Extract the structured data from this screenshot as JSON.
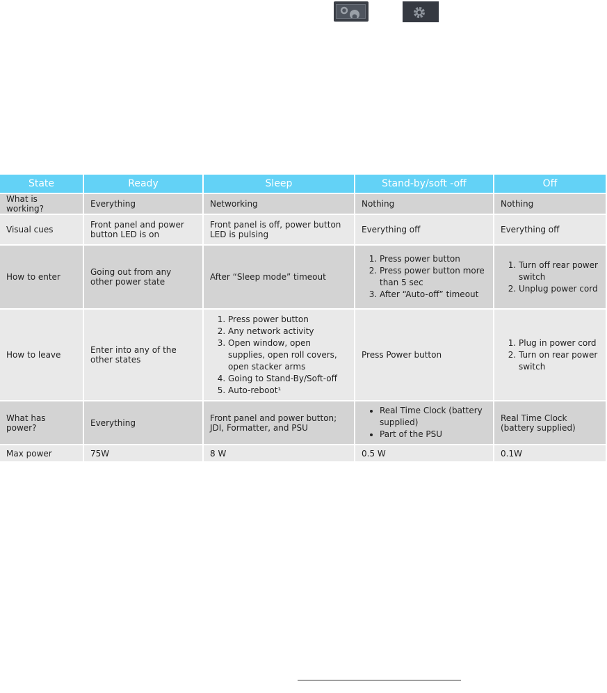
{
  "icons": [
    "gears-icon",
    "gear-icon"
  ],
  "colors": {
    "header": "#63d2f6",
    "row_dark": "#d3d3d3",
    "row_light": "#e9e9e9"
  },
  "headers": [
    "State",
    "Ready",
    "Sleep",
    "Stand-by/soft -off",
    "Off"
  ],
  "rows": [
    {
      "label": "What is working?",
      "ready": "Everything",
      "sleep": "Networking",
      "standby": "Nothing",
      "off": "Nothing"
    },
    {
      "label": "Visual cues",
      "ready": "Front panel and power button LED is on",
      "sleep": "Front panel is off, power button LED is pulsing",
      "standby": "Everything off",
      "off": "Everything off"
    },
    {
      "label": "How to enter",
      "ready": "Going out from any other power state",
      "sleep": "After “Sleep mode” timeout",
      "standby_list": [
        "Press power button",
        "Press power button more than 5 sec",
        "After “Auto-off” timeout"
      ],
      "off_list": [
        "Turn off rear power switch",
        "Unplug power cord"
      ]
    },
    {
      "label": "How to leave",
      "ready": "Enter into any of the other states",
      "sleep_list": [
        "Press power button",
        "Any network activity",
        "Open window, open supplies, open roll covers, open stacker arms",
        "Going to Stand-By/Soft-off",
        "Auto-reboot¹"
      ],
      "standby": "Press Power button",
      "off_list": [
        "Plug in power cord",
        "Turn on rear power switch"
      ]
    },
    {
      "label": "What has power?",
      "ready": "Everything",
      "sleep": "Front panel and power button; JDI, Formatter, and PSU",
      "standby_list": [
        "Real Time Clock (battery supplied)",
        "Part of the PSU"
      ],
      "off": "Real Time Clock (battery supplied)"
    },
    {
      "label": "Max power",
      "ready": "75W",
      "sleep": "8 W",
      "standby": "0.5 W",
      "off": "0.1W"
    }
  ]
}
